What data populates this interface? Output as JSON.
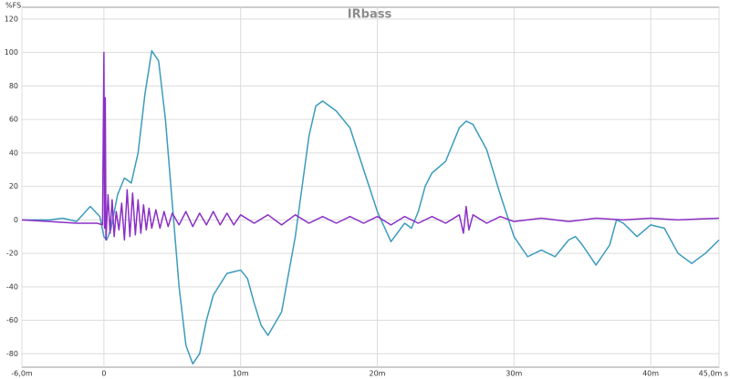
{
  "chart_data": {
    "type": "line",
    "title": "IRbass",
    "y_label": "%FS",
    "xlim": [
      -6,
      45
    ],
    "ylim": [
      -88,
      127
    ],
    "xticks": [
      {
        "value": -6,
        "label": "-6,0m"
      },
      0,
      {
        "value": 10,
        "label": "10m"
      },
      {
        "value": 20,
        "label": "20m"
      },
      {
        "value": 30,
        "label": "30m"
      },
      {
        "value": 40,
        "label": "40m"
      },
      {
        "value": 45,
        "label": "45,0m s"
      }
    ],
    "yticks": [
      -80,
      -60,
      -40,
      -20,
      0,
      20,
      40,
      60,
      80,
      100,
      120
    ],
    "grid": true,
    "series": [
      {
        "color": "#3b9bbd",
        "x": [
          -6,
          -4,
          -3,
          -2,
          -1,
          -0.3,
          0,
          0.2,
          0.5,
          1,
          1.5,
          2,
          2.5,
          3,
          3.5,
          4,
          4.5,
          5,
          5.5,
          6,
          6.5,
          7,
          7.5,
          8,
          9,
          10,
          10.5,
          11,
          11.5,
          12,
          13,
          14,
          14.5,
          15,
          15.5,
          16,
          17,
          18,
          19,
          20,
          21,
          22,
          22.5,
          23,
          23.5,
          24,
          25,
          26,
          26.5,
          27,
          28,
          29,
          30,
          31,
          32,
          33,
          34,
          34.5,
          35,
          36,
          37,
          37.5,
          38,
          39,
          40,
          41,
          42,
          43,
          44,
          45
        ],
        "values": [
          0,
          0,
          1,
          -1,
          8,
          2,
          -10,
          -12,
          -6,
          15,
          25,
          22,
          40,
          75,
          101,
          95,
          60,
          10,
          -40,
          -75,
          -86,
          -80,
          -60,
          -45,
          -32,
          -30,
          -35,
          -50,
          -63,
          -69,
          -55,
          -10,
          20,
          50,
          68,
          71,
          65,
          55,
          30,
          5,
          -13,
          -2,
          -5,
          5,
          20,
          28,
          35,
          55,
          59,
          57,
          42,
          15,
          -10,
          -22,
          -18,
          -22,
          -12,
          -10,
          -15,
          -27,
          -15,
          0,
          -2,
          -10,
          -3,
          -5,
          -20,
          -26,
          -20,
          -12
        ]
      },
      {
        "color": "#8b2fc6",
        "x": [
          -6,
          -4,
          -2,
          -0.5,
          -0.1,
          0,
          0.05,
          0.1,
          0.15,
          0.3,
          0.45,
          0.6,
          0.75,
          0.9,
          1.1,
          1.3,
          1.5,
          1.7,
          1.9,
          2.1,
          2.3,
          2.5,
          2.7,
          2.9,
          3.1,
          3.3,
          3.5,
          3.8,
          4.1,
          4.4,
          4.7,
          5,
          5.5,
          6,
          6.5,
          7,
          7.5,
          8,
          8.5,
          9,
          9.5,
          10,
          11,
          12,
          13,
          14,
          15,
          16,
          17,
          18,
          19,
          20,
          21,
          22,
          23,
          24,
          25,
          26,
          26.3,
          26.5,
          26.7,
          27,
          28,
          29,
          30,
          32,
          34,
          36,
          38,
          40,
          42,
          45
        ],
        "values": [
          0,
          -1,
          -2,
          -2,
          -3,
          100,
          -5,
          73,
          -12,
          15,
          -8,
          12,
          -10,
          5,
          -6,
          10,
          -12,
          18,
          -10,
          16,
          -9,
          12,
          -8,
          9,
          -6,
          7,
          -5,
          6,
          -5,
          5,
          -4,
          4,
          -3,
          5,
          -4,
          4,
          -3,
          5,
          -3,
          4,
          -3,
          3,
          -2,
          3,
          -3,
          3,
          -2,
          2,
          -2,
          2,
          -2,
          2,
          -3,
          2,
          -2,
          2,
          -2,
          3,
          -8,
          8,
          -6,
          3,
          -2,
          2,
          -1,
          1,
          -1,
          1,
          0,
          1,
          0,
          1
        ]
      }
    ]
  }
}
